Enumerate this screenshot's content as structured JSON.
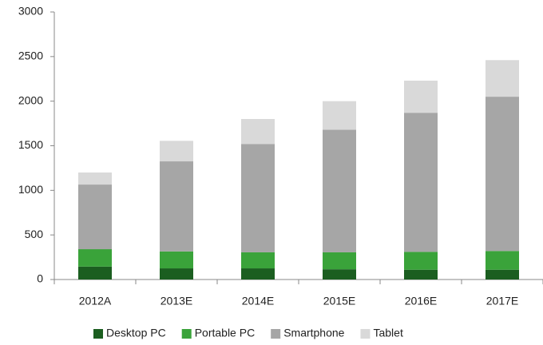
{
  "chart_data": {
    "type": "stacked_bar",
    "categories": [
      "2012A",
      "2013E",
      "2014E",
      "2015E",
      "2016E",
      "2017E"
    ],
    "series": [
      {
        "name": "Desktop PC",
        "color": "#1b5e20",
        "values": [
          145,
          125,
          125,
          115,
          110,
          110
        ]
      },
      {
        "name": "Portable PC",
        "color": "#3aa33a",
        "values": [
          195,
          190,
          180,
          190,
          200,
          210
        ]
      },
      {
        "name": "Smartphone",
        "color": "#a6a6a6",
        "values": [
          725,
          1010,
          1215,
          1375,
          1560,
          1730
        ]
      },
      {
        "name": "Tablet",
        "color": "#d9d9d9",
        "values": [
          135,
          230,
          280,
          320,
          360,
          410
        ]
      }
    ],
    "ylim": [
      0,
      3000
    ],
    "yticks": [
      0,
      500,
      1000,
      1500,
      2000,
      2500,
      3000
    ],
    "legend": "bottom"
  }
}
